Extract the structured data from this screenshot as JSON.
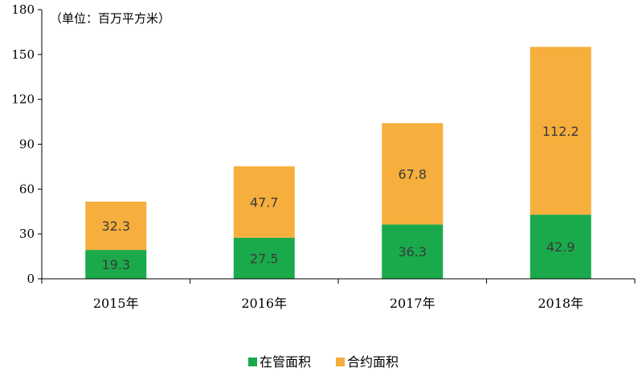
{
  "chart_data": {
    "type": "bar",
    "stacked": true,
    "unit_label": "（单位：百万平方米）",
    "categories": [
      "2015年",
      "2016年",
      "2017年",
      "2018年"
    ],
    "series": [
      {
        "name": "在管面积",
        "color": "#1aaa4b",
        "values": [
          19.3,
          27.5,
          36.3,
          42.9
        ]
      },
      {
        "name": "合约面积",
        "color": "#f6ae3c",
        "values": [
          32.3,
          47.7,
          67.8,
          112.2
        ]
      }
    ],
    "ylim": [
      0,
      180
    ],
    "yticks": [
      0,
      30,
      60,
      90,
      120,
      150,
      180
    ],
    "grid": false,
    "legend_position": "bottom"
  }
}
